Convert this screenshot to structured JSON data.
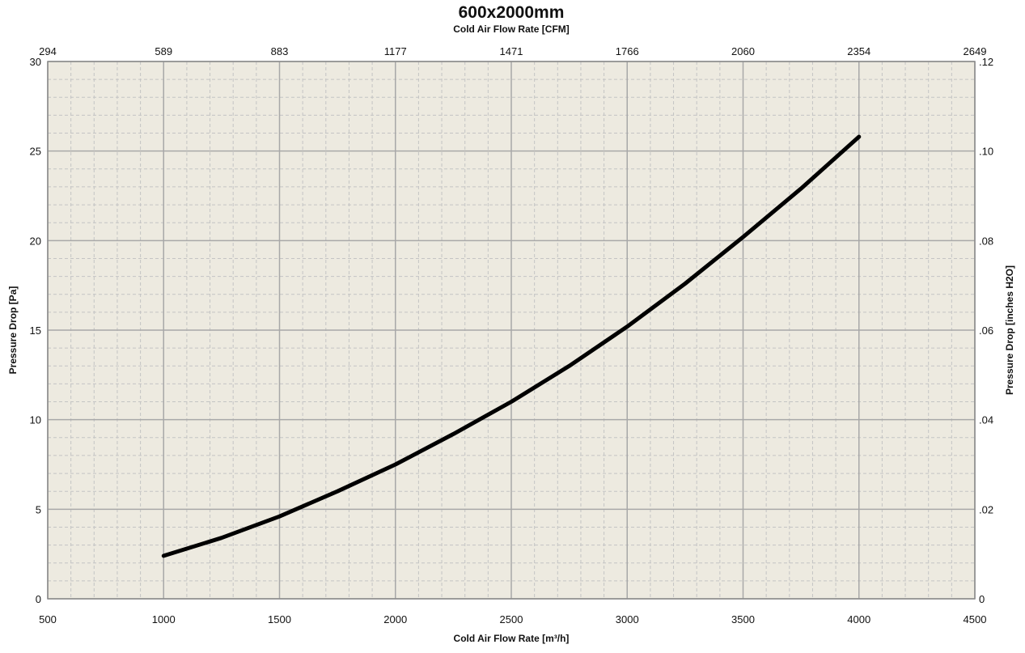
{
  "chart_data": {
    "type": "line",
    "title": "600x2000mm",
    "xlabel": "Cold Air Flow Rate [m³/h]",
    "ylabel": "Pressure Drop [Pa]",
    "x2label": "Cold Air Flow Rate [CFM]",
    "y2label": "Pressure Drop [inches H2O]",
    "xlim": [
      500,
      4500
    ],
    "ylim": [
      0,
      30
    ],
    "x_ticks": [
      "500",
      "1000",
      "1500",
      "2000",
      "2500",
      "3000",
      "3500",
      "4000",
      "4500"
    ],
    "y_ticks": [
      "0",
      "5",
      "10",
      "15",
      "20",
      "25",
      "30"
    ],
    "x2_ticks": [
      "294",
      "589",
      "883",
      "1177",
      "1471",
      "1766",
      "2060",
      "2354",
      "2649"
    ],
    "y2_ticks": [
      "0",
      ".02",
      ".04",
      ".06",
      ".08",
      ".10",
      ".12"
    ],
    "grid": true,
    "colors": {
      "plot_background": "#edeae0",
      "line": "#000000",
      "major_grid": "#a8a8a8",
      "minor_grid": "#c4c4c4"
    },
    "series": [
      {
        "x": [
          1000,
          1250,
          1500,
          1750,
          2000,
          2250,
          2500,
          2750,
          3000,
          3250,
          3500,
          3750,
          4000
        ],
        "y": [
          2.4,
          3.4,
          4.6,
          6.0,
          7.5,
          9.2,
          11.0,
          13.0,
          15.2,
          17.6,
          20.2,
          22.9,
          25.8
        ]
      }
    ]
  }
}
